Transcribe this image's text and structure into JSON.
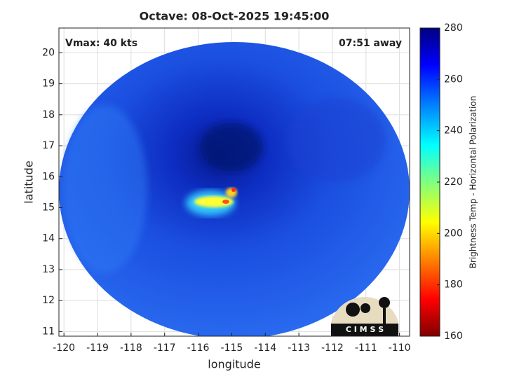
{
  "chart_data": {
    "type": "image",
    "title": "Octave: 08-Oct-2025 19:45:00",
    "xlabel": "longitude",
    "ylabel": "latitude",
    "annotations": [
      "Vmax: 40 kts",
      "07:51 away"
    ],
    "xlim": [
      -120.15,
      -109.7
    ],
    "ylim": [
      10.85,
      20.8
    ],
    "xticks": [
      -120,
      -119,
      -118,
      -117,
      -116,
      -115,
      -114,
      -113,
      -112,
      -111,
      -110
    ],
    "yticks": [
      11,
      12,
      13,
      14,
      15,
      16,
      17,
      18,
      19,
      20
    ],
    "grid": true,
    "colorbar": {
      "label": "Brightness Temp - Horizontal Polarization",
      "lim": [
        160,
        280
      ],
      "ticks": [
        160,
        180,
        200,
        220,
        240,
        260,
        280
      ]
    },
    "logo_text": "C I M S S"
  }
}
